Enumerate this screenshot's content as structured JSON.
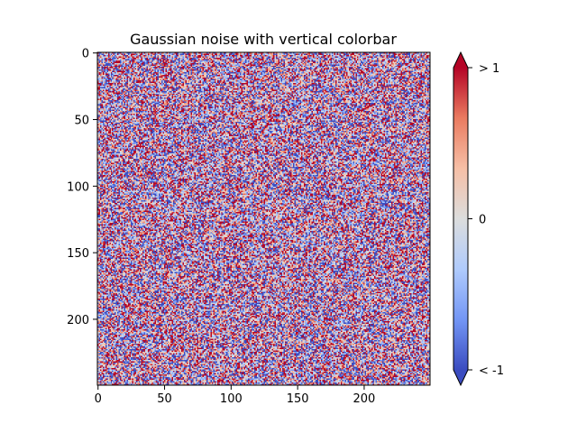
{
  "chart_data": {
    "type": "heatmap",
    "title": "Gaussian noise with vertical colorbar",
    "xlabel": "",
    "ylabel": "",
    "grid": false,
    "n_rows": 250,
    "n_cols": 250,
    "xlim": [
      -0.5,
      249.5
    ],
    "ylim": [
      249.5,
      -0.5
    ],
    "x_ticks": [
      0,
      50,
      100,
      150,
      200
    ],
    "y_ticks": [
      0,
      50,
      100,
      150,
      200
    ],
    "x_tick_labels": [
      "0",
      "50",
      "100",
      "150",
      "200"
    ],
    "y_tick_labels": [
      "0",
      "50",
      "100",
      "150",
      "200"
    ],
    "colormap": "coolwarm",
    "colormap_stops": [
      "#3b4cc0",
      "#7396f5",
      "#b0cbfc",
      "#dcdddd",
      "#f6bfa6",
      "#ea7b60",
      "#b40426"
    ],
    "under_color": "#3b4cc0",
    "over_color": "#b40426",
    "colorbar": {
      "orientation": "vertical",
      "extend": "both",
      "vmin": -1,
      "vmax": 1,
      "ticks": [
        -1,
        0,
        1
      ],
      "tick_labels": [
        "< -1",
        "0",
        "> 1"
      ]
    }
  }
}
